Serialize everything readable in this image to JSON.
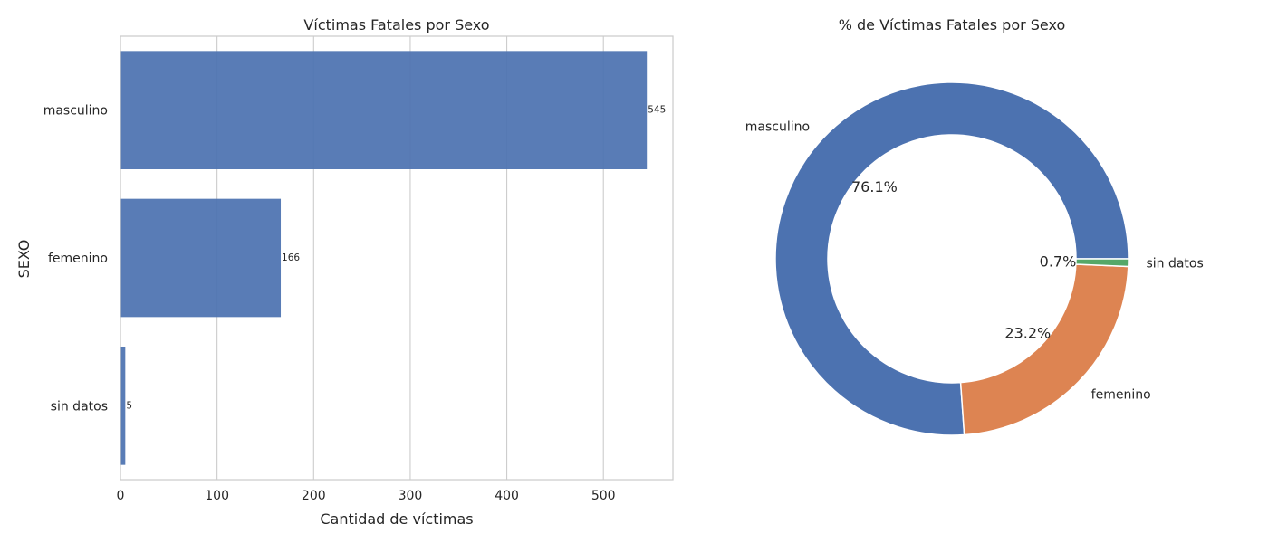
{
  "chart_data": [
    {
      "type": "bar",
      "orientation": "horizontal",
      "title": "Víctimas Fatales por Sexo",
      "xlabel": "Cantidad de víctimas",
      "ylabel": "SEXO",
      "categories": [
        "masculino",
        "femenino",
        "sin datos"
      ],
      "values": [
        545,
        166,
        5
      ],
      "data_labels": [
        "545",
        "166",
        "5"
      ],
      "xticks": [
        0,
        100,
        200,
        300,
        400,
        500
      ],
      "xtick_labels": [
        "0",
        "100",
        "200",
        "300",
        "400",
        "500"
      ],
      "xlim": [
        0,
        572
      ],
      "grid": true,
      "color": "#4c72b0"
    },
    {
      "type": "pie",
      "donut": true,
      "title": "% de Víctimas Fatales por Sexo",
      "labels": [
        "masculino",
        "femenino",
        "sin datos"
      ],
      "values": [
        545,
        166,
        5
      ],
      "percent_labels": [
        "76.1%",
        "23.2%",
        "0.7%"
      ],
      "colors": [
        "#4c72b0",
        "#dd8452",
        "#55a868"
      ]
    }
  ]
}
